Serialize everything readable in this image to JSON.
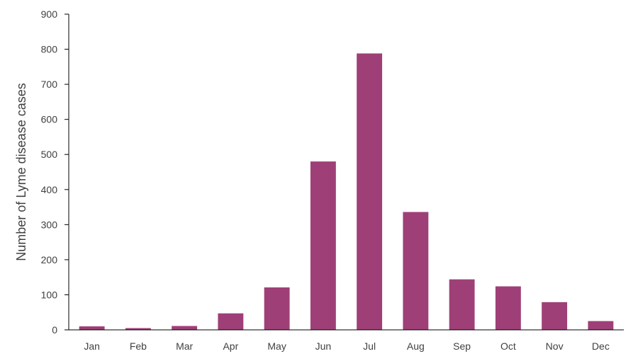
{
  "chart_data": {
    "type": "bar",
    "title": "",
    "xlabel": "",
    "ylabel": "Number of Lyme disease cases",
    "categories": [
      "Jan",
      "Feb",
      "Mar",
      "Apr",
      "May",
      "Jun",
      "Jul",
      "Aug",
      "Sep",
      "Oct",
      "Nov",
      "Dec"
    ],
    "values": [
      10,
      5,
      11,
      47,
      121,
      480,
      788,
      336,
      144,
      124,
      79,
      25
    ],
    "ylim": [
      0,
      900
    ],
    "yticks": [
      0,
      100,
      200,
      300,
      400,
      500,
      600,
      700,
      800,
      900
    ],
    "grid": false,
    "legend": "none",
    "bar_color": "#9e3f77",
    "axis_color": "#000000"
  }
}
